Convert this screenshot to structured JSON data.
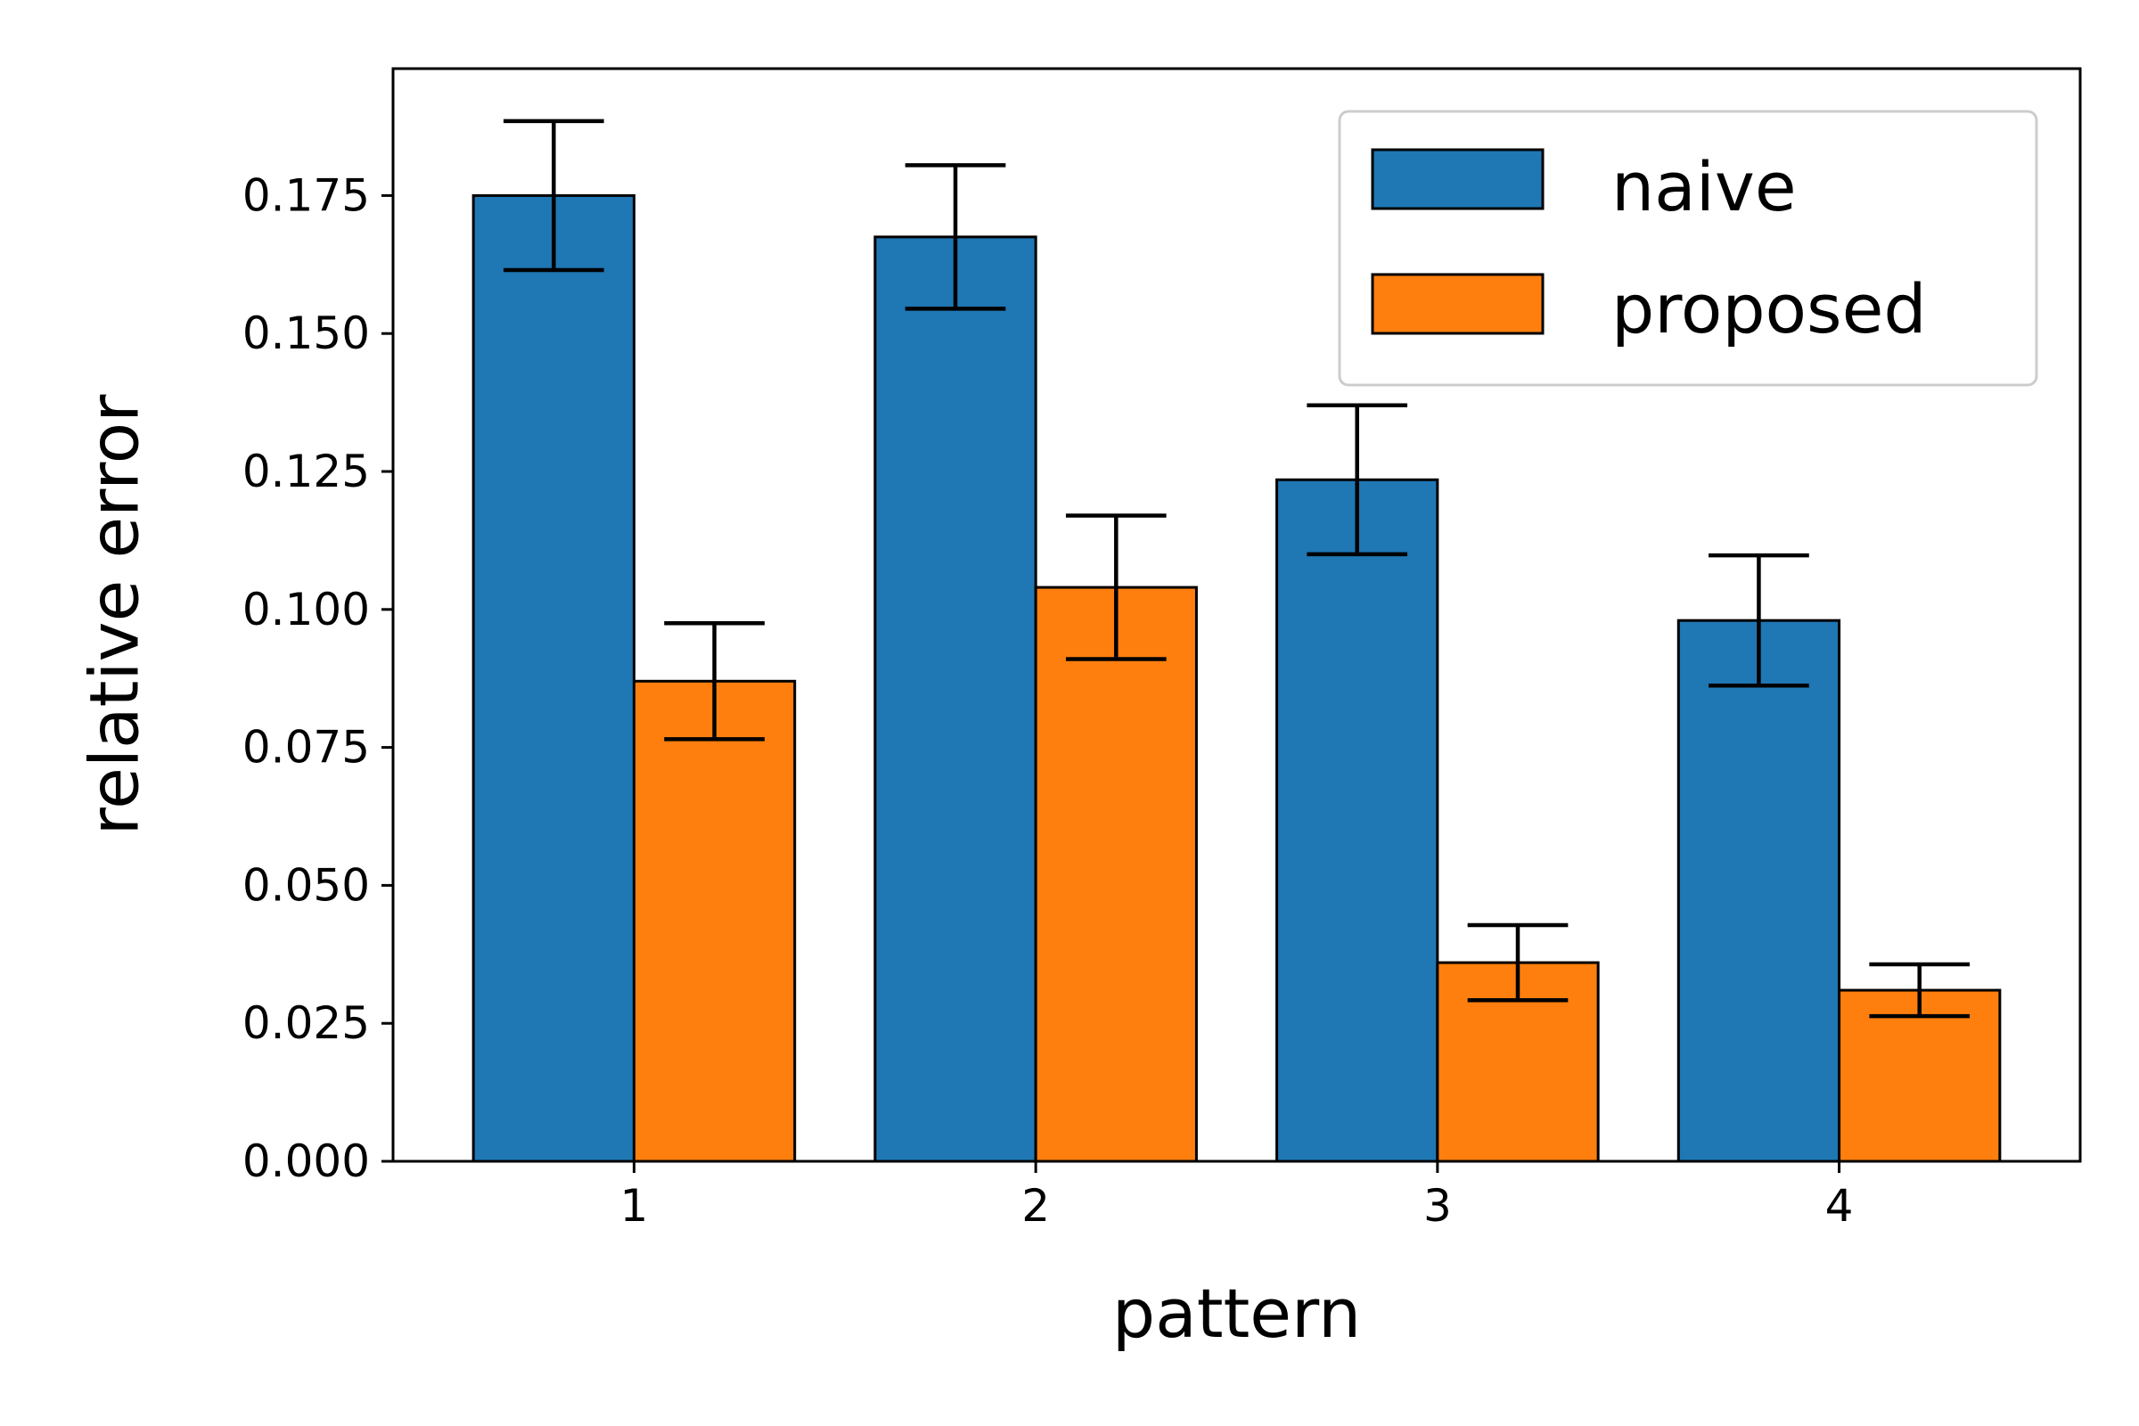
{
  "chart_data": {
    "type": "bar",
    "title": "",
    "xlabel": "pattern",
    "ylabel": "relative error",
    "categories": [
      "1",
      "2",
      "3",
      "4"
    ],
    "ylim": [
      0,
      0.198
    ],
    "yticks": [
      0.0,
      0.025,
      0.05,
      0.075,
      0.1,
      0.125,
      0.15,
      0.175
    ],
    "ytick_labels": [
      "0.000",
      "0.025",
      "0.050",
      "0.075",
      "0.100",
      "0.125",
      "0.150",
      "0.175"
    ],
    "grid": false,
    "legend_position": "top-right",
    "series": [
      {
        "name": "naive",
        "color": "#1f77b4",
        "values": [
          0.175,
          0.1675,
          0.1235,
          0.098
        ],
        "errors": [
          0.0135,
          0.013,
          0.0135,
          0.0118
        ]
      },
      {
        "name": "proposed",
        "color": "#ff7f0e",
        "values": [
          0.087,
          0.104,
          0.036,
          0.031
        ],
        "errors": [
          0.0105,
          0.013,
          0.0068,
          0.0047
        ]
      }
    ]
  }
}
